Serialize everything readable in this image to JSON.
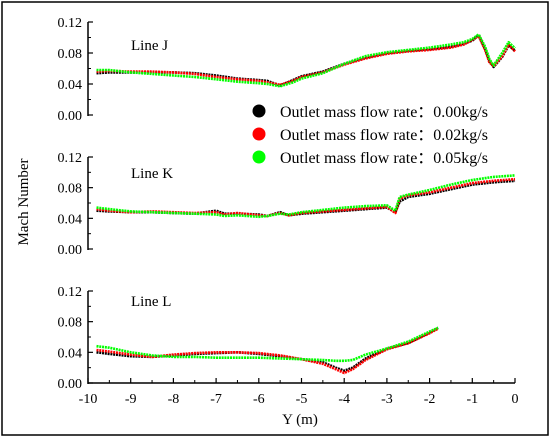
{
  "chart_data": {
    "type": "line",
    "xlabel": "Y (m)",
    "ylabel": "Mach Number",
    "xlim": [
      -10,
      0
    ],
    "xticks": [
      -10,
      -9,
      -8,
      -7,
      -6,
      -5,
      -4,
      -3,
      -2,
      -1,
      0
    ],
    "ylim": [
      0,
      0.12
    ],
    "yticks": [
      "0.00",
      "0.04",
      "0.08",
      "0.12"
    ],
    "legend_position": "middle-right",
    "legend": [
      {
        "label": "Outlet mass flow rate：0.00kg/s",
        "color": "#000000"
      },
      {
        "label": "Outlet mass flow rate：0.02kg/s",
        "color": "#ff0000"
      },
      {
        "label": "Outlet mass flow rate：0.05kg/s",
        "color": "#00ff00"
      }
    ],
    "panels": [
      {
        "name": "Line J",
        "series": [
          {
            "color": "#000000",
            "points": [
              [
                -9.8,
                0.054
              ],
              [
                -9.5,
                0.055
              ],
              [
                -9.0,
                0.055
              ],
              [
                -8.5,
                0.055
              ],
              [
                -8.0,
                0.055
              ],
              [
                -7.5,
                0.054
              ],
              [
                -7.0,
                0.051
              ],
              [
                -6.5,
                0.047
              ],
              [
                -6.0,
                0.045
              ],
              [
                -5.8,
                0.044
              ],
              [
                -5.5,
                0.038
              ],
              [
                -5.2,
                0.045
              ],
              [
                -5.0,
                0.05
              ],
              [
                -4.5,
                0.056
              ],
              [
                -4.0,
                0.066
              ],
              [
                -3.5,
                0.074
              ],
              [
                -3.0,
                0.08
              ],
              [
                -2.5,
                0.083
              ],
              [
                -2.0,
                0.085
              ],
              [
                -1.5,
                0.088
              ],
              [
                -1.2,
                0.092
              ],
              [
                -1.0,
                0.096
              ],
              [
                -0.85,
                0.103
              ],
              [
                -0.7,
                0.085
              ],
              [
                -0.6,
                0.07
              ],
              [
                -0.5,
                0.062
              ],
              [
                -0.3,
                0.075
              ],
              [
                -0.15,
                0.09
              ],
              [
                0,
                0.083
              ]
            ]
          },
          {
            "color": "#ff0000",
            "points": [
              [
                -9.8,
                0.056
              ],
              [
                -9.5,
                0.057
              ],
              [
                -9.0,
                0.056
              ],
              [
                -8.5,
                0.056
              ],
              [
                -8.0,
                0.055
              ],
              [
                -7.5,
                0.053
              ],
              [
                -7.0,
                0.049
              ],
              [
                -6.5,
                0.046
              ],
              [
                -6.0,
                0.044
              ],
              [
                -5.8,
                0.042
              ],
              [
                -5.5,
                0.039
              ],
              [
                -5.2,
                0.044
              ],
              [
                -5.0,
                0.049
              ],
              [
                -4.5,
                0.055
              ],
              [
                -4.0,
                0.065
              ],
              [
                -3.5,
                0.073
              ],
              [
                -3.0,
                0.079
              ],
              [
                -2.5,
                0.082
              ],
              [
                -2.0,
                0.084
              ],
              [
                -1.5,
                0.087
              ],
              [
                -1.2,
                0.091
              ],
              [
                -1.0,
                0.097
              ],
              [
                -0.85,
                0.102
              ],
              [
                -0.7,
                0.084
              ],
              [
                -0.6,
                0.068
              ],
              [
                -0.5,
                0.063
              ],
              [
                -0.3,
                0.076
              ],
              [
                -0.15,
                0.091
              ],
              [
                0,
                0.082
              ]
            ]
          },
          {
            "color": "#00ff00",
            "points": [
              [
                -9.8,
                0.058
              ],
              [
                -9.5,
                0.058
              ],
              [
                -9.0,
                0.055
              ],
              [
                -8.5,
                0.053
              ],
              [
                -8.0,
                0.051
              ],
              [
                -7.5,
                0.049
              ],
              [
                -7.0,
                0.046
              ],
              [
                -6.5,
                0.043
              ],
              [
                -6.0,
                0.041
              ],
              [
                -5.8,
                0.04
              ],
              [
                -5.5,
                0.037
              ],
              [
                -5.2,
                0.042
              ],
              [
                -5.0,
                0.047
              ],
              [
                -4.5,
                0.054
              ],
              [
                -4.0,
                0.066
              ],
              [
                -3.5,
                0.076
              ],
              [
                -3.0,
                0.081
              ],
              [
                -2.5,
                0.084
              ],
              [
                -2.0,
                0.087
              ],
              [
                -1.5,
                0.091
              ],
              [
                -1.2,
                0.094
              ],
              [
                -1.0,
                0.098
              ],
              [
                -0.85,
                0.104
              ],
              [
                -0.7,
                0.088
              ],
              [
                -0.6,
                0.072
              ],
              [
                -0.5,
                0.064
              ],
              [
                -0.3,
                0.08
              ],
              [
                -0.15,
                0.094
              ],
              [
                0,
                0.086
              ]
            ]
          }
        ]
      },
      {
        "name": "Line K",
        "series": [
          {
            "color": "#000000",
            "points": [
              [
                -9.8,
                0.05
              ],
              [
                -9.5,
                0.049
              ],
              [
                -9.0,
                0.048
              ],
              [
                -8.5,
                0.048
              ],
              [
                -8.0,
                0.047
              ],
              [
                -7.5,
                0.046
              ],
              [
                -7.0,
                0.05
              ],
              [
                -6.8,
                0.046
              ],
              [
                -6.5,
                0.046
              ],
              [
                -6.0,
                0.045
              ],
              [
                -5.8,
                0.043
              ],
              [
                -5.5,
                0.048
              ],
              [
                -5.3,
                0.044
              ],
              [
                -5.0,
                0.046
              ],
              [
                -4.5,
                0.048
              ],
              [
                -4.0,
                0.05
              ],
              [
                -3.5,
                0.052
              ],
              [
                -3.0,
                0.054
              ],
              [
                -2.8,
                0.048
              ],
              [
                -2.7,
                0.062
              ],
              [
                -2.5,
                0.068
              ],
              [
                -2.0,
                0.072
              ],
              [
                -1.5,
                0.078
              ],
              [
                -1.0,
                0.084
              ],
              [
                -0.5,
                0.087
              ],
              [
                0,
                0.089
              ]
            ]
          },
          {
            "color": "#ff0000",
            "points": [
              [
                -9.8,
                0.052
              ],
              [
                -9.5,
                0.05
              ],
              [
                -9.0,
                0.048
              ],
              [
                -8.5,
                0.049
              ],
              [
                -8.0,
                0.048
              ],
              [
                -7.5,
                0.047
              ],
              [
                -7.0,
                0.048
              ],
              [
                -6.8,
                0.045
              ],
              [
                -6.5,
                0.047
              ],
              [
                -6.0,
                0.044
              ],
              [
                -5.8,
                0.043
              ],
              [
                -5.5,
                0.047
              ],
              [
                -5.3,
                0.044
              ],
              [
                -5.0,
                0.047
              ],
              [
                -4.5,
                0.049
              ],
              [
                -4.0,
                0.051
              ],
              [
                -3.5,
                0.053
              ],
              [
                -3.0,
                0.055
              ],
              [
                -2.8,
                0.047
              ],
              [
                -2.7,
                0.066
              ],
              [
                -2.5,
                0.07
              ],
              [
                -2.0,
                0.074
              ],
              [
                -1.5,
                0.08
              ],
              [
                -1.0,
                0.086
              ],
              [
                -0.5,
                0.089
              ],
              [
                0,
                0.091
              ]
            ]
          },
          {
            "color": "#00ff00",
            "points": [
              [
                -9.8,
                0.054
              ],
              [
                -9.5,
                0.052
              ],
              [
                -9.0,
                0.049
              ],
              [
                -8.5,
                0.048
              ],
              [
                -8.0,
                0.047
              ],
              [
                -7.5,
                0.046
              ],
              [
                -7.0,
                0.045
              ],
              [
                -6.8,
                0.043
              ],
              [
                -6.5,
                0.044
              ],
              [
                -6.0,
                0.042
              ],
              [
                -5.8,
                0.043
              ],
              [
                -5.5,
                0.046
              ],
              [
                -5.3,
                0.045
              ],
              [
                -5.0,
                0.048
              ],
              [
                -4.5,
                0.051
              ],
              [
                -4.0,
                0.054
              ],
              [
                -3.5,
                0.056
              ],
              [
                -3.0,
                0.057
              ],
              [
                -2.8,
                0.05
              ],
              [
                -2.7,
                0.068
              ],
              [
                -2.5,
                0.071
              ],
              [
                -2.0,
                0.077
              ],
              [
                -1.5,
                0.084
              ],
              [
                -1.0,
                0.09
              ],
              [
                -0.5,
                0.094
              ],
              [
                0,
                0.096
              ]
            ]
          }
        ]
      },
      {
        "name": "Line L",
        "series": [
          {
            "color": "#000000",
            "points": [
              [
                -9.8,
                0.04
              ],
              [
                -9.5,
                0.038
              ],
              [
                -9.0,
                0.035
              ],
              [
                -8.5,
                0.034
              ],
              [
                -8.0,
                0.036
              ],
              [
                -7.5,
                0.038
              ],
              [
                -7.0,
                0.039
              ],
              [
                -6.5,
                0.04
              ],
              [
                -6.0,
                0.038
              ],
              [
                -5.5,
                0.035
              ],
              [
                -5.0,
                0.031
              ],
              [
                -4.5,
                0.027
              ],
              [
                -4.2,
                0.02
              ],
              [
                -4.0,
                0.016
              ],
              [
                -3.8,
                0.02
              ],
              [
                -3.5,
                0.032
              ],
              [
                -3.0,
                0.045
              ],
              [
                -2.5,
                0.052
              ],
              [
                -2.0,
                0.066
              ],
              [
                -1.8,
                0.072
              ]
            ]
          },
          {
            "color": "#ff0000",
            "points": [
              [
                -9.8,
                0.043
              ],
              [
                -9.5,
                0.041
              ],
              [
                -9.0,
                0.037
              ],
              [
                -8.5,
                0.034
              ],
              [
                -8.0,
                0.037
              ],
              [
                -7.5,
                0.039
              ],
              [
                -7.0,
                0.04
              ],
              [
                -6.5,
                0.04
              ],
              [
                -6.0,
                0.039
              ],
              [
                -5.5,
                0.036
              ],
              [
                -5.0,
                0.031
              ],
              [
                -4.5,
                0.025
              ],
              [
                -4.2,
                0.018
              ],
              [
                -4.0,
                0.013
              ],
              [
                -3.8,
                0.018
              ],
              [
                -3.5,
                0.03
              ],
              [
                -3.0,
                0.044
              ],
              [
                -2.5,
                0.052
              ],
              [
                -2.0,
                0.065
              ],
              [
                -1.8,
                0.071
              ]
            ]
          },
          {
            "color": "#00ff00",
            "points": [
              [
                -9.8,
                0.048
              ],
              [
                -9.5,
                0.046
              ],
              [
                -9.0,
                0.04
              ],
              [
                -8.5,
                0.036
              ],
              [
                -8.0,
                0.034
              ],
              [
                -7.5,
                0.034
              ],
              [
                -7.0,
                0.033
              ],
              [
                -6.5,
                0.033
              ],
              [
                -6.0,
                0.033
              ],
              [
                -5.5,
                0.032
              ],
              [
                -5.0,
                0.031
              ],
              [
                -4.5,
                0.03
              ],
              [
                -4.2,
                0.029
              ],
              [
                -4.0,
                0.029
              ],
              [
                -3.8,
                0.03
              ],
              [
                -3.5,
                0.037
              ],
              [
                -3.0,
                0.045
              ],
              [
                -2.5,
                0.054
              ],
              [
                -2.0,
                0.067
              ],
              [
                -1.8,
                0.072
              ]
            ]
          }
        ]
      }
    ]
  }
}
